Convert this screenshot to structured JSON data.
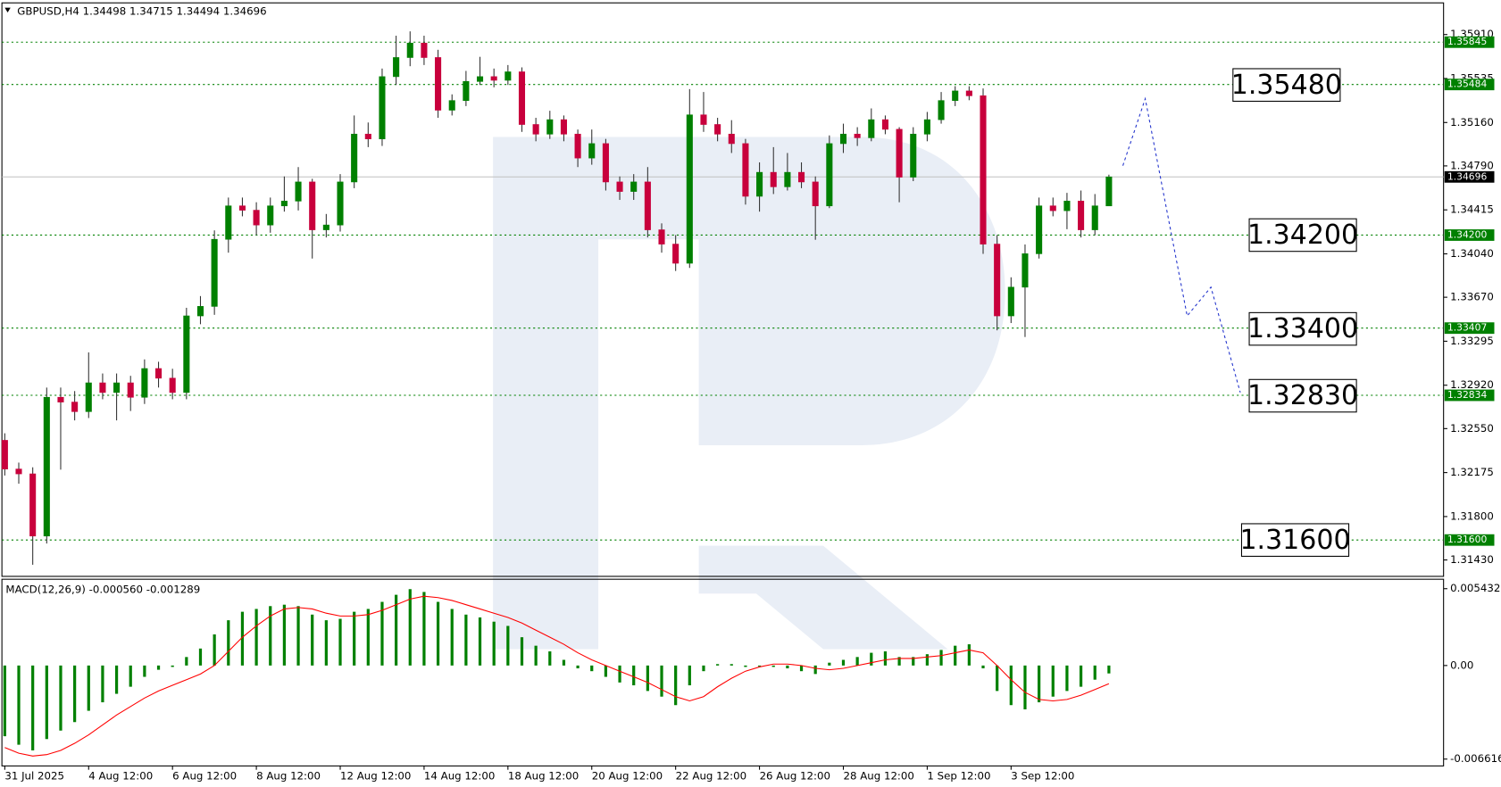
{
  "chart_data": [
    {
      "type": "candlestick",
      "title": "GBPUSD,H4 1.34498 1.34715 1.34494 1.34696",
      "categories": [
        "31 Jul 2025",
        null,
        null,
        null,
        null,
        null,
        "4 Aug 12:00",
        null,
        null,
        null,
        null,
        null,
        "6 Aug 12:00",
        null,
        null,
        null,
        null,
        null,
        "8 Aug 12:00",
        null,
        null,
        null,
        null,
        null,
        "12 Aug 12:00",
        null,
        null,
        null,
        null,
        null,
        "14 Aug 12:00",
        null,
        null,
        null,
        null,
        null,
        "18 Aug 12:00",
        null,
        null,
        null,
        null,
        null,
        "20 Aug 12:00",
        null,
        null,
        null,
        null,
        null,
        "22 Aug 12:00",
        null,
        null,
        null,
        null,
        null,
        "26 Aug 12:00",
        null,
        null,
        null,
        null,
        null,
        "28 Aug 12:00",
        null,
        null,
        null,
        null,
        null,
        "1 Sep 12:00",
        null,
        null,
        null,
        null,
        null,
        "3 Sep 12:00",
        null,
        null,
        null,
        null,
        null,
        null,
        null
      ],
      "ohlc": [
        [
          1.3245,
          1.3251,
          1.3215,
          1.32205
        ],
        [
          1.32205,
          1.3226,
          1.3208,
          1.32164
        ],
        [
          1.32164,
          1.3222,
          1.31389,
          1.31634
        ],
        [
          1.31634,
          1.329,
          1.3157,
          1.32817
        ],
        [
          1.32817,
          1.329,
          1.322,
          1.32776
        ],
        [
          1.32776,
          1.3287,
          1.3262,
          1.32695
        ],
        [
          1.32695,
          1.332,
          1.3264,
          1.3294
        ],
        [
          1.3294,
          1.3302,
          1.328,
          1.32858
        ],
        [
          1.32858,
          1.3302,
          1.3262,
          1.3294
        ],
        [
          1.3294,
          1.33,
          1.327,
          1.32817
        ],
        [
          1.32817,
          1.3314,
          1.3276,
          1.33062
        ],
        [
          1.33062,
          1.3312,
          1.329,
          1.3298
        ],
        [
          1.3298,
          1.3306,
          1.328,
          1.32858
        ],
        [
          1.32858,
          1.3358,
          1.328,
          1.33511
        ],
        [
          1.33511,
          1.3368,
          1.3344,
          1.33592
        ],
        [
          1.33592,
          1.3424,
          1.3352,
          1.34164
        ],
        [
          1.34164,
          1.3452,
          1.3405,
          1.34449
        ],
        [
          1.34449,
          1.3452,
          1.3436,
          1.34412
        ],
        [
          1.34412,
          1.3448,
          1.342,
          1.34286
        ],
        [
          1.34286,
          1.3452,
          1.3422,
          1.34449
        ],
        [
          1.34449,
          1.347,
          1.344,
          1.3449
        ],
        [
          1.3449,
          1.3478,
          1.3441,
          1.34653
        ],
        [
          1.34653,
          1.3468,
          1.34,
          1.34245
        ],
        [
          1.34245,
          1.3438,
          1.3418,
          1.34286
        ],
        [
          1.34286,
          1.3472,
          1.3423,
          1.34653
        ],
        [
          1.34653,
          1.3522,
          1.346,
          1.35061
        ],
        [
          1.35061,
          1.3516,
          1.3495,
          1.3502
        ],
        [
          1.3502,
          1.3562,
          1.3496,
          1.35551
        ],
        [
          1.35551,
          1.359,
          1.3548,
          1.35714
        ],
        [
          1.35714,
          1.35937,
          1.3564,
          1.35837
        ],
        [
          1.35837,
          1.359,
          1.3565,
          1.35714
        ],
        [
          1.35714,
          1.3578,
          1.352,
          1.35265
        ],
        [
          1.35265,
          1.354,
          1.3522,
          1.35347
        ],
        [
          1.35347,
          1.356,
          1.353,
          1.3551
        ],
        [
          1.3551,
          1.3572,
          1.3548,
          1.35551
        ],
        [
          1.35551,
          1.3562,
          1.3546,
          1.3552
        ],
        [
          1.3552,
          1.3565,
          1.3548,
          1.35592
        ],
        [
          1.35592,
          1.3563,
          1.3508,
          1.35143
        ],
        [
          1.35143,
          1.352,
          1.35,
          1.35061
        ],
        [
          1.35061,
          1.3526,
          1.3502,
          1.35184
        ],
        [
          1.35184,
          1.3522,
          1.35,
          1.35061
        ],
        [
          1.35061,
          1.351,
          1.3478,
          1.34857
        ],
        [
          1.34857,
          1.351,
          1.348,
          1.3498
        ],
        [
          1.3498,
          1.3502,
          1.3458,
          1.34653
        ],
        [
          1.34653,
          1.347,
          1.345,
          1.34572
        ],
        [
          1.34572,
          1.3472,
          1.345,
          1.34653
        ],
        [
          1.34653,
          1.3478,
          1.3418,
          1.34245
        ],
        [
          1.34245,
          1.343,
          1.3405,
          1.34123
        ],
        [
          1.34123,
          1.342,
          1.33894,
          1.3396
        ],
        [
          1.3396,
          1.35445,
          1.3392,
          1.35225
        ],
        [
          1.35225,
          1.3542,
          1.3508,
          1.35143
        ],
        [
          1.35143,
          1.352,
          1.35,
          1.35061
        ],
        [
          1.35061,
          1.3518,
          1.349,
          1.3498
        ],
        [
          1.3498,
          1.3502,
          1.3446,
          1.34531
        ],
        [
          1.34531,
          1.3482,
          1.344,
          1.34735
        ],
        [
          1.34735,
          1.3495,
          1.3455,
          1.34612
        ],
        [
          1.34612,
          1.349,
          1.3458,
          1.34735
        ],
        [
          1.34735,
          1.3482,
          1.346,
          1.34653
        ],
        [
          1.34653,
          1.347,
          1.3416,
          1.34449
        ],
        [
          1.34449,
          1.3505,
          1.3443,
          1.3498
        ],
        [
          1.3498,
          1.3515,
          1.349,
          1.35061
        ],
        [
          1.35061,
          1.3512,
          1.3496,
          1.3503
        ],
        [
          1.3503,
          1.3528,
          1.35,
          1.35184
        ],
        [
          1.35184,
          1.3522,
          1.3506,
          1.35102
        ],
        [
          1.35102,
          1.3512,
          1.3448,
          1.34694
        ],
        [
          1.34694,
          1.3512,
          1.3466,
          1.35061
        ],
        [
          1.35061,
          1.3525,
          1.35,
          1.35184
        ],
        [
          1.35184,
          1.3542,
          1.3515,
          1.35347
        ],
        [
          1.35347,
          1.3547,
          1.353,
          1.35429
        ],
        [
          1.35429,
          1.35469,
          1.3535,
          1.35388
        ],
        [
          1.35388,
          1.3545,
          1.3404,
          1.34123
        ],
        [
          1.34123,
          1.342,
          1.33388,
          1.33511
        ],
        [
          1.33511,
          1.3384,
          1.3345,
          1.33756
        ],
        [
          1.33756,
          1.3412,
          1.33331,
          1.34041
        ],
        [
          1.34041,
          1.3452,
          1.34,
          1.34449
        ],
        [
          1.34449,
          1.3452,
          1.3436,
          1.34408
        ],
        [
          1.34408,
          1.3456,
          1.3425,
          1.3449
        ],
        [
          1.3449,
          1.3458,
          1.3418,
          1.34245
        ],
        [
          1.34245,
          1.3455,
          1.342,
          1.34449
        ],
        [
          1.34449,
          1.34715,
          1.3445,
          1.34696
        ]
      ],
      "up_color": "#008000",
      "down_color": "#c8003c",
      "ylim": [
        1.3129,
        1.3618
      ],
      "yticks": [
        {
          "value": 1.3591,
          "label": "1.35910"
        },
        1.35535,
        {
          "value": 1.3516,
          "label": "1.35160"
        },
        {
          "value": 1.3479,
          "label": "1.34790"
        },
        1.34415,
        {
          "value": 1.3404,
          "label": "1.34040"
        },
        {
          "value": 1.3367,
          "label": "1.33670"
        },
        1.33295,
        {
          "value": 1.3292,
          "label": "1.32920"
        },
        {
          "value": 1.3255,
          "label": "1.32550"
        },
        1.32175,
        {
          "value": 1.318,
          "label": "1.31800"
        },
        {
          "value": 1.3143,
          "label": "1.31430"
        }
      ],
      "levels": [
        1.35845,
        1.35484,
        {
          "value": 1.342,
          "label": "1.34200"
        },
        1.33407,
        1.32834,
        {
          "value": 1.316,
          "label": "1.31600"
        }
      ],
      "level_color": "#008000",
      "current": 1.34696,
      "boxes": [
        {
          "value": 1.3548,
          "label": "1.35480"
        },
        {
          "value": 1.342,
          "label": "1.34200"
        },
        {
          "value": 1.334,
          "label": "1.33400"
        },
        {
          "value": 1.3283,
          "label": "1.32830"
        },
        {
          "value": 1.316,
          "label": "1.31600"
        }
      ],
      "forecast": {
        "x": [
          80,
          81.6,
          84.6,
          86.3,
          88.4
        ],
        "values": [
          1.34792,
          1.35363,
          1.33511,
          1.33756,
          1.32858
        ]
      },
      "forecast_color": "#2233cc"
    },
    {
      "type": "macd",
      "title": "MACD(12,26,9) -0.000560 -0.001289",
      "histogram": {
        "color": "#008000",
        "values": [
          -0.005,
          -0.0056,
          -0.006,
          -0.0052,
          -0.0046,
          -0.004,
          -0.0032,
          -0.0026,
          -0.002,
          -0.0015,
          -0.0008,
          -0.0003,
          -0.0001,
          0.0006,
          0.0012,
          0.0022,
          0.0032,
          0.0038,
          0.004,
          0.0042,
          0.0043,
          0.0042,
          0.0036,
          0.0032,
          0.0033,
          0.0038,
          0.004,
          0.0045,
          0.005,
          0.0054,
          0.0052,
          0.0045,
          0.004,
          0.0036,
          0.0034,
          0.0031,
          0.0028,
          0.002,
          0.0014,
          0.001,
          0.0004,
          -0.0002,
          -0.0004,
          -0.0008,
          -0.0012,
          -0.0014,
          -0.0018,
          -0.0022,
          -0.0028,
          -0.0014,
          -0.0004,
          0.0001,
          0.0001,
          -0.0001,
          0,
          -0.0001,
          -0.0002,
          -0.0004,
          -0.0006,
          0.0002,
          0.0004,
          0.0006,
          0.0009,
          0.001,
          0.0006,
          0.0006,
          0.0008,
          0.0011,
          0.0014,
          0.0015,
          -0.0002,
          -0.0018,
          -0.0028,
          -0.0031,
          -0.0026,
          -0.0022,
          -0.0018,
          -0.0015,
          -0.001,
          -0.00056
        ]
      },
      "signal": {
        "color": "#ff0000",
        "values": [
          -0.0058,
          -0.0062,
          -0.0064,
          -0.0063,
          -0.006,
          -0.0055,
          -0.0049,
          -0.0042,
          -0.0035,
          -0.0029,
          -0.0023,
          -0.0018,
          -0.0014,
          -0.001,
          -0.0006,
          0,
          0.001,
          0.002,
          0.0028,
          0.0035,
          0.004,
          0.0041,
          0.004,
          0.0037,
          0.0035,
          0.0035,
          0.0036,
          0.0039,
          0.0043,
          0.0047,
          0.0049,
          0.0048,
          0.0046,
          0.0043,
          0.004,
          0.0037,
          0.0034,
          0.003,
          0.0025,
          0.002,
          0.0015,
          0.0009,
          0.0004,
          0,
          -0.0004,
          -0.0008,
          -0.0012,
          -0.0017,
          -0.0022,
          -0.0025,
          -0.0022,
          -0.0015,
          -0.0009,
          -0.0004,
          -0.0001,
          0.0001,
          0.0001,
          0,
          -0.0002,
          -0.0003,
          -0.0002,
          0,
          0.0002,
          0.0004,
          0.0005,
          0.0005,
          0.0006,
          0.0007,
          0.0009,
          0.0011,
          0.0009,
          0,
          -0.001,
          -0.0019,
          -0.0024,
          -0.0025,
          -0.0024,
          -0.0021,
          -0.0017,
          -0.001289
        ]
      },
      "ylim": [
        -0.0071,
        0.0061
      ],
      "yticks": [
        0.005432,
        {
          "value": 0,
          "label": "0.00"
        },
        -0.006616
      ]
    }
  ]
}
